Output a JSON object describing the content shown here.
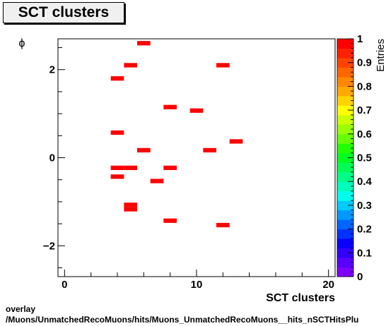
{
  "title": "SCT clusters",
  "footer": {
    "line1": "overlay",
    "line2": "/Muons/UnmatchedRecoMuons/hits/Muons_UnmatchedRecoMuons__hits_nSCTHitsPlu"
  },
  "chart_data": {
    "type": "heatmap",
    "title": "SCT clusters",
    "xlabel": "SCT clusters",
    "ylabel": "ϕ",
    "zlabel": "Entries",
    "xlim": [
      -0.5,
      20.5
    ],
    "ylim": [
      -2.7,
      2.7
    ],
    "zlim": [
      0,
      1
    ],
    "x_ticks": [
      0,
      10,
      20
    ],
    "y_ticks": [
      -2,
      0,
      2
    ],
    "z_ticks": [
      "0",
      "0.1",
      "0.2",
      "0.3",
      "0.4",
      "0.5",
      "0.6",
      "0.7",
      "0.8",
      "0.9",
      "1"
    ],
    "bin_width_x": 1,
    "bin_width_y": 0.1,
    "cells": [
      {
        "x": 6,
        "y": 2.6,
        "z": 1
      },
      {
        "x": 5,
        "y": 2.1,
        "z": 1
      },
      {
        "x": 12,
        "y": 2.1,
        "z": 1
      },
      {
        "x": 4,
        "y": 1.8,
        "z": 1
      },
      {
        "x": 8,
        "y": 1.15,
        "z": 1
      },
      {
        "x": 10,
        "y": 1.07,
        "z": 1
      },
      {
        "x": 4,
        "y": 0.57,
        "z": 1
      },
      {
        "x": 13,
        "y": 0.37,
        "z": 1
      },
      {
        "x": 6,
        "y": 0.17,
        "z": 1
      },
      {
        "x": 11,
        "y": 0.17,
        "z": 1
      },
      {
        "x": 4,
        "y": -0.23,
        "z": 1
      },
      {
        "x": 5,
        "y": -0.23,
        "z": 1
      },
      {
        "x": 8,
        "y": -0.23,
        "z": 1
      },
      {
        "x": 4,
        "y": -0.43,
        "z": 1
      },
      {
        "x": 7,
        "y": -0.53,
        "z": 1
      },
      {
        "x": 5,
        "y": -1.07,
        "z": 1
      },
      {
        "x": 5,
        "y": -1.17,
        "z": 1
      },
      {
        "x": 8,
        "y": -1.43,
        "z": 1
      },
      {
        "x": 12,
        "y": -1.53,
        "z": 1
      }
    ],
    "palette": [
      "#7f00ff",
      "#5a00ff",
      "#3300ff",
      "#0a00ff",
      "#0033ff",
      "#0066ff",
      "#0099ff",
      "#00ccff",
      "#00ffee",
      "#00ffbb",
      "#00ff88",
      "#00ff55",
      "#00ff22",
      "#22ff00",
      "#66ff00",
      "#99ff00",
      "#ccff00",
      "#ffff00",
      "#ffd400",
      "#ffaa00",
      "#ff8800",
      "#ff6600",
      "#ff4400",
      "#ff2200",
      "#ff0000"
    ],
    "cell_color": "#ff0000"
  }
}
